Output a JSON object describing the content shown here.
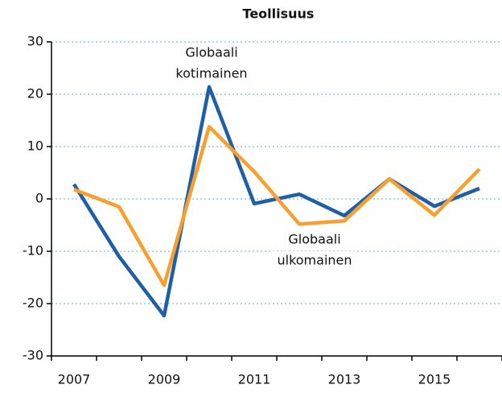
{
  "chart_data": {
    "type": "line",
    "title": "Teollisuus",
    "categories": [
      "2007",
      null,
      "2009",
      null,
      "2011",
      null,
      "2013",
      null,
      "2015",
      null
    ],
    "series": [
      {
        "color": "#1f5fa6",
        "values": [
          2.8,
          -11,
          -22.3,
          21.4,
          -0.9,
          0.9,
          -3.2,
          3.8,
          -1.4,
          2
        ]
      },
      {
        "color": "#f7a030",
        "values": [
          1.8,
          -1.5,
          -16.5,
          13.8,
          5.2,
          -4.8,
          -4.2,
          3.8,
          -3.1,
          5.7
        ]
      }
    ],
    "annotations": [
      [
        "Globaali",
        "kotimainen"
      ],
      [
        "Globaali",
        "ulkomainen"
      ]
    ],
    "ylim": [
      -30,
      30
    ],
    "yticks": [
      -30,
      -20,
      -10,
      0,
      10,
      20,
      30
    ],
    "grid": true
  }
}
